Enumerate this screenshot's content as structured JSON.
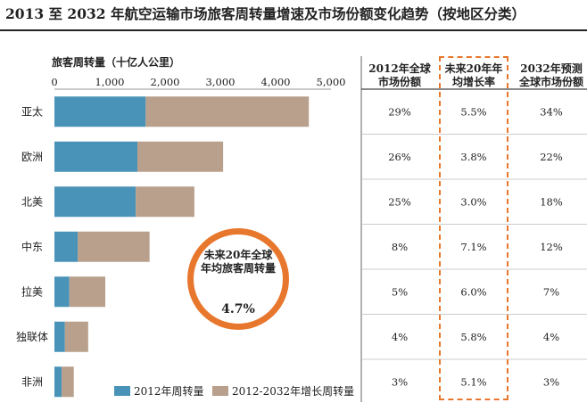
{
  "title": "2013 至 2032 年航空运输市场旅客周转量增速及市场份额变化趋势（按地区分类）",
  "chart_data": {
    "type": "bar",
    "stacked": true,
    "orientation": "horizontal",
    "xlabel": "旅客周转量（十亿人公里）",
    "xlim": [
      0,
      5000
    ],
    "xticks": [
      "0",
      "1,000",
      "2,000",
      "3,000",
      "4,000",
      "5,000"
    ],
    "categories": [
      "亚太",
      "欧洲",
      "北美",
      "中东",
      "拉美",
      "独联体",
      "非洲"
    ],
    "series": [
      {
        "name": "2012年周转量",
        "color": "#4a93b8",
        "values": [
          1650,
          1500,
          1470,
          420,
          270,
          190,
          130
        ]
      },
      {
        "name": "2012-2032年增长周转量",
        "color": "#b8a08c",
        "values": [
          2950,
          1550,
          1060,
          1300,
          650,
          420,
          220
        ]
      }
    ],
    "legend_position": "bottom"
  },
  "table": {
    "headers": [
      "2012年全球市场份额",
      "未来20年年均增长率",
      "2032年预测全球市场份额"
    ],
    "rows": [
      [
        "29%",
        "5.5%",
        "34%"
      ],
      [
        "26%",
        "3.8%",
        "22%"
      ],
      [
        "25%",
        "3.0%",
        "18%"
      ],
      [
        "8%",
        "7.1%",
        "12%"
      ],
      [
        "5%",
        "6.0%",
        "7%"
      ],
      [
        "4%",
        "5.8%",
        "4%"
      ],
      [
        "3%",
        "5.1%",
        "3%"
      ]
    ]
  },
  "callout": {
    "label": "未来20年全球年均旅客周转量",
    "value": "4.7%"
  },
  "colors": {
    "highlight": "#e8772e"
  }
}
